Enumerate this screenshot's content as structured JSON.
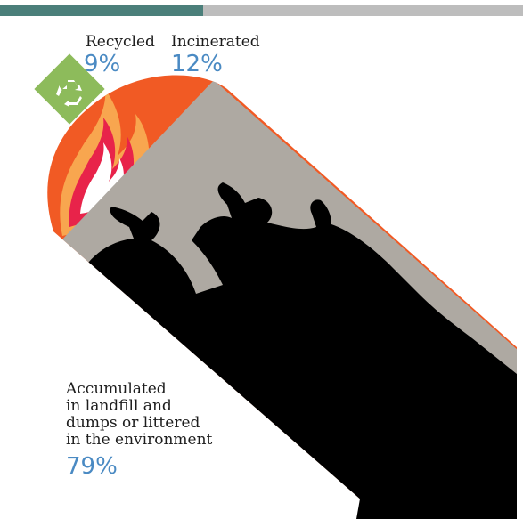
{
  "categories": {
    "recycled": {
      "label": "Recycled",
      "value": "9%"
    },
    "incinerated": {
      "label": "Incinerated",
      "value": "12%"
    },
    "landfill": {
      "label_lines": [
        "Accumulated",
        "in landfill and",
        "dumps or littered",
        "in the environment"
      ],
      "value": "79%"
    }
  },
  "icons": {
    "recycle": "recycle-icon",
    "fire": "flame-icon",
    "waste": "garbage-bags-icon"
  },
  "colors": {
    "bar_dark": "#4b7f7a",
    "bar_light": "#bdbdbd",
    "recycled": "#8dbb5b",
    "incinerated": "#f15a24",
    "landfill": "#aea9a2",
    "value_text": "#4a8ac3"
  }
}
